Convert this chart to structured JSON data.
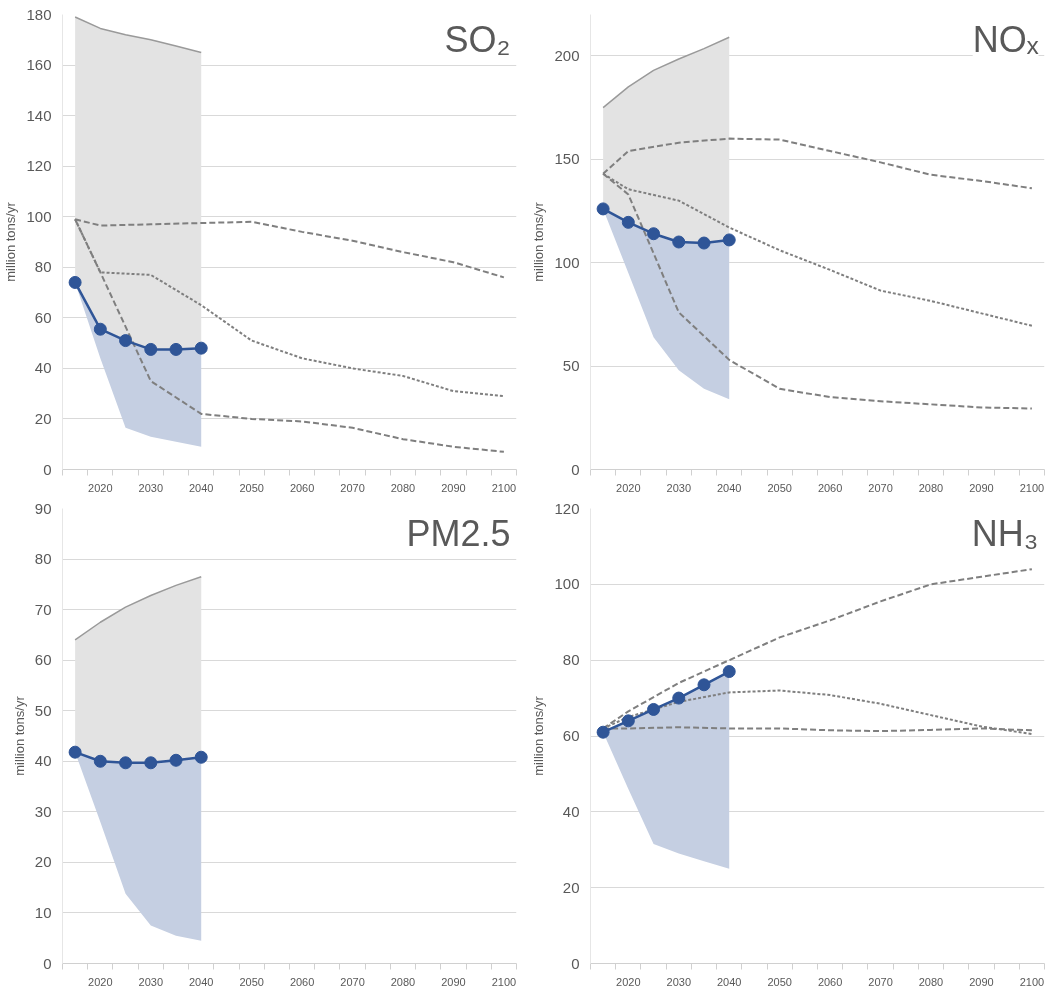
{
  "chart_data": [
    {
      "type": "line",
      "title": "SO₂",
      "ylabel": "million tons/yr",
      "xlim": [
        2012.5,
        2102.5
      ],
      "xticks": [
        {
          "value": 2012.5,
          "label": null
        },
        2020,
        {
          "value": 2017.5,
          "label": null
        },
        {
          "value": 2022.5,
          "label": null
        },
        {
          "value": 2027.5,
          "label": null
        },
        2030,
        {
          "value": 2032.5,
          "label": null
        },
        {
          "value": 2037.5,
          "label": null
        },
        2040,
        {
          "value": 2042.5,
          "label": null
        },
        {
          "value": 2047.5,
          "label": null
        },
        2050,
        {
          "value": 2052.5,
          "label": null
        },
        {
          "value": 2057.5,
          "label": null
        },
        2060,
        {
          "value": 2062.5,
          "label": null
        },
        {
          "value": 2067.5,
          "label": null
        },
        2070,
        {
          "value": 2072.5,
          "label": null
        },
        {
          "value": 2077.5,
          "label": null
        },
        2080,
        {
          "value": 2082.5,
          "label": null
        },
        {
          "value": 2087.5,
          "label": null
        },
        2090,
        {
          "value": 2092.5,
          "label": null
        },
        {
          "value": 2097.5,
          "label": null
        },
        2100,
        {
          "value": 2102.5,
          "label": null
        }
      ],
      "ylim": [
        0,
        180
      ],
      "yticks": [
        0,
        20,
        40,
        60,
        80,
        100,
        120,
        140,
        160,
        180
      ],
      "grid": "y",
      "series": [
        {
          "color": "#7f7f7f",
          "line_style": "dashed",
          "x": [
            2015,
            2020,
            2030,
            2040,
            2050,
            2060,
            2070,
            2080,
            2090,
            2100
          ],
          "values": [
            99,
            96.5,
            97,
            97.5,
            98,
            94,
            90.5,
            86,
            82,
            76
          ]
        },
        {
          "color": "#7f7f7f",
          "line_style": "dotted",
          "x": [
            2015,
            2020,
            2030,
            2040,
            2050,
            2060,
            2070,
            2080,
            2090,
            2100
          ],
          "values": [
            99,
            78,
            77,
            65,
            51,
            44,
            40,
            37,
            31,
            29
          ]
        },
        {
          "color": "#7f7f7f",
          "line_style": "dashed",
          "x": [
            2015,
            2020,
            2030,
            2040,
            2050,
            2060,
            2070,
            2080,
            2090,
            2100
          ],
          "values": [
            99,
            78,
            35,
            22,
            20,
            19,
            16.5,
            12,
            9,
            7
          ]
        },
        {
          "color": "#9a9a9a",
          "line_style": "solid",
          "x": [
            2015,
            2020,
            2025,
            2030,
            2035,
            2040
          ],
          "values": [
            179,
            174.5,
            172,
            170,
            167.5,
            165
          ],
          "lower": [
            74,
            55.5,
            51,
            47.5,
            47.5,
            48
          ],
          "upper": [
            179,
            174.5,
            172,
            170,
            167.5,
            165
          ]
        },
        {
          "color": "#2f5597",
          "marker": "circle",
          "x": [
            2015,
            2020,
            2025,
            2030,
            2035,
            2040
          ],
          "values": [
            74,
            55.5,
            51,
            47.5,
            47.5,
            48
          ],
          "lower": [
            74,
            44,
            16.5,
            13,
            11,
            9
          ],
          "upper": [
            74,
            55.5,
            51,
            47.5,
            47.5,
            48
          ]
        }
      ]
    },
    {
      "type": "line",
      "title": "NOₓ",
      "ylabel": "million tons/yr",
      "xlim": [
        2012.5,
        2102.5
      ],
      "xticks": [
        {
          "value": 2012.5,
          "label": null
        },
        2020,
        {
          "value": 2017.5,
          "label": null
        },
        {
          "value": 2022.5,
          "label": null
        },
        {
          "value": 2027.5,
          "label": null
        },
        2030,
        {
          "value": 2032.5,
          "label": null
        },
        {
          "value": 2037.5,
          "label": null
        },
        2040,
        {
          "value": 2042.5,
          "label": null
        },
        {
          "value": 2047.5,
          "label": null
        },
        2050,
        {
          "value": 2052.5,
          "label": null
        },
        {
          "value": 2057.5,
          "label": null
        },
        2060,
        {
          "value": 2062.5,
          "label": null
        },
        {
          "value": 2067.5,
          "label": null
        },
        2070,
        {
          "value": 2072.5,
          "label": null
        },
        {
          "value": 2077.5,
          "label": null
        },
        2080,
        {
          "value": 2082.5,
          "label": null
        },
        {
          "value": 2087.5,
          "label": null
        },
        2090,
        {
          "value": 2092.5,
          "label": null
        },
        {
          "value": 2097.5,
          "label": null
        },
        2100,
        {
          "value": 2102.5,
          "label": null
        }
      ],
      "ylim": [
        0,
        220
      ],
      "yticks": [
        0,
        50,
        100,
        150,
        200
      ],
      "grid": "y",
      "series": [
        {
          "color": "#7f7f7f",
          "line_style": "dashed",
          "x": [
            2015,
            2020,
            2030,
            2040,
            2050,
            2060,
            2070,
            2080,
            2090,
            2100
          ],
          "values": [
            143,
            154,
            158,
            160,
            159.5,
            154,
            148.5,
            142.5,
            139.5,
            136
          ]
        },
        {
          "color": "#7f7f7f",
          "line_style": "dotted",
          "x": [
            2015,
            2020,
            2030,
            2040,
            2050,
            2060,
            2070,
            2080,
            2090,
            2100
          ],
          "values": [
            143,
            135.5,
            130,
            117,
            106,
            96.5,
            86.5,
            81.5,
            75.5,
            69.5
          ]
        },
        {
          "color": "#7f7f7f",
          "line_style": "dashed",
          "x": [
            2015,
            2020,
            2030,
            2040,
            2050,
            2060,
            2070,
            2080,
            2090,
            2100
          ],
          "values": [
            143,
            133,
            76,
            53,
            39,
            35,
            33,
            31.5,
            30,
            29.5
          ]
        },
        {
          "color": "#9a9a9a",
          "line_style": "solid",
          "x": [
            2015,
            2020,
            2025,
            2030,
            2035,
            2040
          ],
          "values": [
            175,
            185,
            193,
            198.5,
            203.5,
            209
          ],
          "lower": [
            126,
            119.5,
            114,
            110,
            109.5,
            111
          ],
          "upper": [
            175,
            185,
            193,
            198.5,
            203.5,
            209
          ]
        },
        {
          "color": "#2f5597",
          "marker": "circle",
          "x": [
            2015,
            2020,
            2025,
            2030,
            2035,
            2040
          ],
          "values": [
            126,
            119.5,
            114,
            110,
            109.5,
            111
          ],
          "lower": [
            126,
            95,
            64,
            48,
            39,
            34
          ],
          "upper": [
            126,
            119.5,
            114,
            110,
            109.5,
            111
          ]
        }
      ]
    },
    {
      "type": "line",
      "title": "PM2.5",
      "ylabel": "million tons/yr",
      "xlim": [
        2012.5,
        2102.5
      ],
      "xticks": [
        {
          "value": 2012.5,
          "label": null
        },
        2020,
        {
          "value": 2017.5,
          "label": null
        },
        {
          "value": 2022.5,
          "label": null
        },
        {
          "value": 2027.5,
          "label": null
        },
        2030,
        {
          "value": 2032.5,
          "label": null
        },
        {
          "value": 2037.5,
          "label": null
        },
        2040,
        {
          "value": 2042.5,
          "label": null
        },
        {
          "value": 2047.5,
          "label": null
        },
        2050,
        {
          "value": 2052.5,
          "label": null
        },
        {
          "value": 2057.5,
          "label": null
        },
        2060,
        {
          "value": 2062.5,
          "label": null
        },
        {
          "value": 2067.5,
          "label": null
        },
        2070,
        {
          "value": 2072.5,
          "label": null
        },
        {
          "value": 2077.5,
          "label": null
        },
        2080,
        {
          "value": 2082.5,
          "label": null
        },
        {
          "value": 2087.5,
          "label": null
        },
        2090,
        {
          "value": 2092.5,
          "label": null
        },
        {
          "value": 2097.5,
          "label": null
        },
        2100,
        {
          "value": 2102.5,
          "label": null
        }
      ],
      "ylim": [
        0,
        90
      ],
      "yticks": [
        0,
        10,
        20,
        30,
        40,
        50,
        60,
        70,
        80,
        90
      ],
      "grid": "y",
      "series": [
        {
          "color": "#9a9a9a",
          "line_style": "solid",
          "x": [
            2015,
            2020,
            2025,
            2030,
            2035,
            2040
          ],
          "values": [
            64,
            67.5,
            70.5,
            72.8,
            74.8,
            76.5
          ],
          "lower": [
            41.8,
            40,
            39.7,
            39.7,
            40.2,
            40.8
          ],
          "upper": [
            64,
            67.5,
            70.5,
            72.8,
            74.8,
            76.5
          ]
        },
        {
          "color": "#2f5597",
          "marker": "circle",
          "x": [
            2015,
            2020,
            2025,
            2030,
            2035,
            2040
          ],
          "values": [
            41.8,
            40,
            39.7,
            39.7,
            40.2,
            40.8
          ],
          "lower": [
            41.8,
            28,
            13.8,
            7.5,
            5.5,
            4.5
          ],
          "upper": [
            41.8,
            40,
            39.7,
            39.7,
            40.2,
            40.8
          ]
        }
      ]
    },
    {
      "type": "line",
      "title": "NH₃",
      "ylabel": "million tons/yr",
      "xlim": [
        2012.5,
        2102.5
      ],
      "xticks": [
        {
          "value": 2012.5,
          "label": null
        },
        2020,
        {
          "value": 2017.5,
          "label": null
        },
        {
          "value": 2022.5,
          "label": null
        },
        {
          "value": 2027.5,
          "label": null
        },
        2030,
        {
          "value": 2032.5,
          "label": null
        },
        {
          "value": 2037.5,
          "label": null
        },
        2040,
        {
          "value": 2042.5,
          "label": null
        },
        {
          "value": 2047.5,
          "label": null
        },
        2050,
        {
          "value": 2052.5,
          "label": null
        },
        {
          "value": 2057.5,
          "label": null
        },
        2060,
        {
          "value": 2062.5,
          "label": null
        },
        {
          "value": 2067.5,
          "label": null
        },
        2070,
        {
          "value": 2072.5,
          "label": null
        },
        {
          "value": 2077.5,
          "label": null
        },
        2080,
        {
          "value": 2082.5,
          "label": null
        },
        {
          "value": 2087.5,
          "label": null
        },
        2090,
        {
          "value": 2092.5,
          "label": null
        },
        {
          "value": 2097.5,
          "label": null
        },
        2100,
        {
          "value": 2102.5,
          "label": null
        }
      ],
      "ylim": [
        0,
        120
      ],
      "yticks": [
        0,
        20,
        40,
        60,
        80,
        100,
        120
      ],
      "grid": "y",
      "series": [
        {
          "color": "#7f7f7f",
          "line_style": "dashed",
          "x": [
            2015,
            2020,
            2030,
            2040,
            2050,
            2060,
            2070,
            2080,
            2090,
            2100
          ],
          "values": [
            62,
            66.5,
            74,
            80,
            86,
            90.5,
            95.5,
            100,
            102,
            104
          ]
        },
        {
          "color": "#7f7f7f",
          "line_style": "dotted",
          "x": [
            2015,
            2020,
            2030,
            2040,
            2050,
            2060,
            2070,
            2080,
            2090,
            2100
          ],
          "values": [
            62,
            65,
            69,
            71.5,
            72,
            70.8,
            68.5,
            65.5,
            62.5,
            60.5
          ]
        },
        {
          "color": "#7f7f7f",
          "line_style": "dashed",
          "x": [
            2015,
            2020,
            2030,
            2040,
            2050,
            2060,
            2070,
            2080,
            2090,
            2100
          ],
          "values": [
            62,
            62,
            62.3,
            62,
            62,
            61.5,
            61.3,
            61.6,
            62,
            61.5
          ]
        },
        {
          "color": "#2f5597",
          "marker": "circle",
          "x": [
            2015,
            2020,
            2025,
            2030,
            2035,
            2040
          ],
          "values": [
            61,
            64,
            67,
            70,
            73.5,
            77
          ],
          "lower": [
            61,
            46,
            31.5,
            29,
            27,
            25
          ],
          "upper": [
            61,
            64,
            67,
            70,
            73.5,
            77
          ]
        }
      ]
    }
  ]
}
